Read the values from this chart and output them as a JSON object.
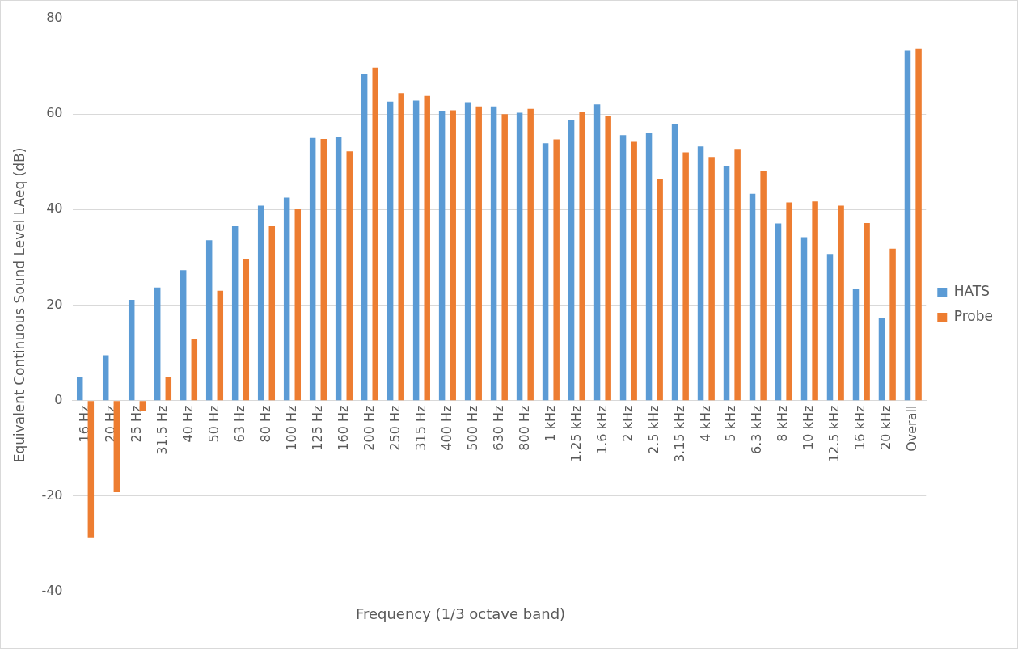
{
  "chart_data": {
    "type": "bar",
    "xlabel": "Frequency (1/3 octave band)",
    "ylabel": "Equivalent Continuous Sound Level LAeq (dB)",
    "categories": [
      "16 Hz",
      "20 Hz",
      "25 Hz",
      "31.5 Hz",
      "40 Hz",
      "50 Hz",
      "63 Hz",
      "80 Hz",
      "100 Hz",
      "125 Hz",
      "160 Hz",
      "200 Hz",
      "250 Hz",
      "315 Hz",
      "400 Hz",
      "500 Hz",
      "630 Hz",
      "800 Hz",
      "1 kHz",
      "1.25 kHz",
      "1.6 kHz",
      "2 kHz",
      "2.5 kHz",
      "3.15 kHz",
      "4 kHz",
      "5 kHz",
      "6.3 kHz",
      "8 kHz",
      "10 kHz",
      "12.5 kHz",
      "16 kHz",
      "20 kHz",
      "Overall"
    ],
    "series": [
      {
        "name": "HATS",
        "color": "#5b9bd5",
        "values": [
          4.9,
          9.5,
          21.1,
          23.7,
          27.3,
          33.6,
          36.5,
          40.8,
          42.5,
          55,
          55.3,
          68.4,
          62.6,
          62.8,
          60.7,
          62.5,
          61.6,
          60.3,
          53.9,
          58.7,
          62,
          55.6,
          56.1,
          58,
          53.2,
          49.2,
          43.3,
          37.1,
          34.2,
          30.7,
          23.4,
          17.3,
          73.3
        ]
      },
      {
        "name": "Probe",
        "color": "#ed7d31",
        "values": [
          -28.8,
          -19.2,
          -2.1,
          4.9,
          12.8,
          23,
          29.6,
          36.5,
          40.2,
          54.8,
          52.2,
          69.7,
          64.4,
          63.8,
          60.8,
          61.6,
          60,
          61.1,
          54.7,
          60.4,
          59.6,
          54.2,
          46.4,
          52,
          51,
          52.7,
          48.2,
          41.5,
          41.7,
          40.8,
          37.2,
          31.8,
          73.6
        ]
      }
    ],
    "ylim": [
      -40,
      80
    ],
    "yticks": [
      -40,
      -20,
      0,
      20,
      40,
      60,
      80
    ],
    "grid": "y",
    "legend": "right"
  }
}
